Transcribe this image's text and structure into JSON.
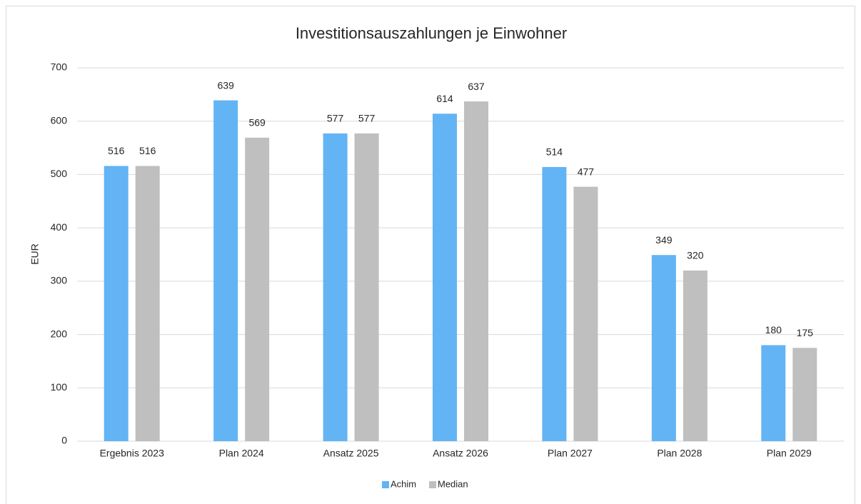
{
  "chart_data": {
    "type": "bar",
    "title": "Investitionsauszahlungen je Einwohner",
    "y_label": "EUR",
    "categories": [
      "Ergebnis 2023",
      "Plan 2024",
      "Ansatz 2025",
      "Ansatz 2026",
      "Plan 2027",
      "Plan 2028",
      "Plan 2029"
    ],
    "series": [
      {
        "name": "Achim",
        "color": "#63b4f4",
        "values": [
          516,
          639,
          577,
          614,
          514,
          349,
          180
        ]
      },
      {
        "name": "Median",
        "color": "#bfbfbf",
        "values": [
          516,
          569,
          577,
          637,
          477,
          320,
          175
        ]
      }
    ],
    "ylim": [
      0,
      700
    ],
    "yticks": [
      0,
      100,
      200,
      300,
      400,
      500,
      600,
      700
    ],
    "grid": true,
    "legend": "bottom"
  }
}
